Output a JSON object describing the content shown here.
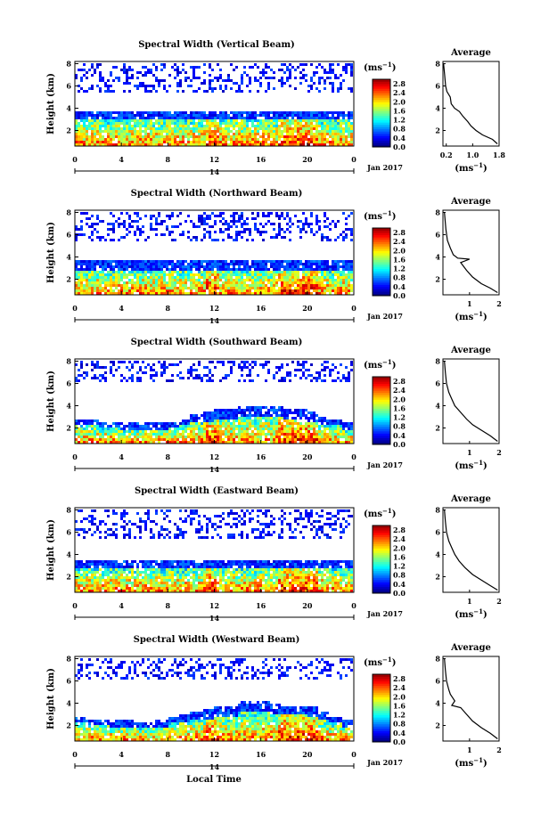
{
  "figure": {
    "xlabel": "Local Time",
    "date_label": "Jan 2017",
    "ylabel": "Height (km)",
    "unit_label": "(ms",
    "unit_exp": "−1",
    "unit_close": ")",
    "avg_title": "Average",
    "avg_xlabel": "(ms",
    "avg_xlabel_exp": "−1",
    "avg_xlabel_close": ")",
    "day_label": "14"
  },
  "chart_data": [
    {
      "type": "heatmap",
      "title": "Spectral Width (Vertical Beam)",
      "x_ticks": [
        "0",
        "4",
        "8",
        "12",
        "16",
        "20",
        "0"
      ],
      "xlim": [
        0,
        24
      ],
      "y_ticks": [
        "2",
        "4",
        "6",
        "8"
      ],
      "ylim": [
        0.6,
        8.2
      ],
      "colorbar": {
        "ticks": [
          "0.0",
          "0.4",
          "0.8",
          "1.2",
          "1.6",
          "2.0",
          "2.4",
          "2.8"
        ],
        "range": [
          0.0,
          3.0
        ]
      },
      "upper_layer_km": [
        5.5,
        8.0
      ],
      "lower_layer_top_km": [
        3.8,
        3.8,
        3.8,
        3.8,
        3.8,
        3.8,
        3.8,
        3.8,
        3.8,
        3.8,
        3.8,
        3.8,
        3.8,
        3.8,
        3.8,
        3.8,
        3.8,
        3.8,
        3.8,
        3.8,
        3.8,
        3.8,
        3.8,
        3.8
      ],
      "average": {
        "xlim": [
          0.1,
          1.8
        ],
        "x_ticks": [
          "0.2",
          "1.0",
          "1.8"
        ],
        "ylim": [
          0.6,
          8.2
        ],
        "y_ticks": [
          "2",
          "4",
          "6",
          "8"
        ],
        "points": [
          [
            1.75,
            0.8
          ],
          [
            1.6,
            1.2
          ],
          [
            1.3,
            1.6
          ],
          [
            1.1,
            2.0
          ],
          [
            0.95,
            2.4
          ],
          [
            0.85,
            2.8
          ],
          [
            0.7,
            3.3
          ],
          [
            0.6,
            3.7
          ],
          [
            0.45,
            4.0
          ],
          [
            0.35,
            4.4
          ],
          [
            0.32,
            5.0
          ],
          [
            0.22,
            5.5
          ],
          [
            0.18,
            6.0
          ],
          [
            0.15,
            7.0
          ],
          [
            0.12,
            8.0
          ]
        ]
      }
    },
    {
      "type": "heatmap",
      "title": "Spectral Width (Northward Beam)",
      "x_ticks": [
        "0",
        "4",
        "8",
        "12",
        "16",
        "20",
        "0"
      ],
      "xlim": [
        0,
        24
      ],
      "y_ticks": [
        "2",
        "4",
        "6",
        "8"
      ],
      "ylim": [
        0.6,
        8.2
      ],
      "colorbar": {
        "ticks": [
          "0.0",
          "0.4",
          "0.8",
          "1.2",
          "1.6",
          "2.0",
          "2.4",
          "2.8"
        ],
        "range": [
          0.0,
          3.0
        ]
      },
      "upper_layer_km": [
        5.5,
        8.0
      ],
      "lower_layer_top_km": [
        3.7,
        3.7,
        3.7,
        3.7,
        3.7,
        3.7,
        3.7,
        3.7,
        3.7,
        3.7,
        3.7,
        3.7,
        3.7,
        3.7,
        3.7,
        3.7,
        3.7,
        3.7,
        3.7,
        3.7,
        3.7,
        3.7,
        3.7,
        3.7
      ],
      "average": {
        "xlim": [
          0.1,
          2.0
        ],
        "x_ticks": [
          "1",
          "2"
        ],
        "ylim": [
          0.6,
          8.2
        ],
        "y_ticks": [
          "2",
          "4",
          "6",
          "8"
        ],
        "points": [
          [
            1.95,
            0.8
          ],
          [
            1.7,
            1.2
          ],
          [
            1.4,
            1.6
          ],
          [
            1.1,
            2.2
          ],
          [
            0.9,
            2.8
          ],
          [
            0.7,
            3.5
          ],
          [
            1.0,
            3.8
          ],
          [
            0.6,
            3.9
          ],
          [
            0.45,
            4.2
          ],
          [
            0.35,
            4.8
          ],
          [
            0.25,
            5.5
          ],
          [
            0.2,
            6.5
          ],
          [
            0.15,
            8.0
          ]
        ]
      }
    },
    {
      "type": "heatmap",
      "title": "Spectral Width (Southward Beam)",
      "x_ticks": [
        "0",
        "4",
        "8",
        "12",
        "16",
        "20",
        "0"
      ],
      "xlim": [
        0,
        24
      ],
      "y_ticks": [
        "2",
        "4",
        "6",
        "8"
      ],
      "ylim": [
        0.6,
        8.2
      ],
      "colorbar": {
        "ticks": [
          "0.0",
          "0.4",
          "0.8",
          "1.2",
          "1.6",
          "2.0",
          "2.4",
          "2.8"
        ],
        "range": [
          0.0,
          3.0
        ]
      },
      "upper_layer_km": [
        6.0,
        8.0
      ],
      "lower_layer_top_km": [
        2.8,
        2.8,
        2.6,
        2.6,
        2.4,
        2.4,
        2.4,
        2.4,
        2.6,
        2.8,
        3.2,
        3.4,
        3.6,
        3.6,
        4.0,
        4.0,
        4.0,
        4.0,
        3.6,
        3.6,
        3.4,
        3.0,
        2.8,
        2.4
      ],
      "average": {
        "xlim": [
          0.1,
          2.0
        ],
        "x_ticks": [
          "1",
          "2"
        ],
        "ylim": [
          0.6,
          8.2
        ],
        "y_ticks": [
          "2",
          "4",
          "6",
          "8"
        ],
        "points": [
          [
            1.95,
            0.8
          ],
          [
            1.7,
            1.3
          ],
          [
            1.4,
            1.8
          ],
          [
            1.1,
            2.3
          ],
          [
            0.9,
            2.8
          ],
          [
            0.7,
            3.4
          ],
          [
            0.5,
            4.0
          ],
          [
            0.4,
            4.6
          ],
          [
            0.3,
            5.2
          ],
          [
            0.22,
            6.0
          ],
          [
            0.18,
            7.0
          ],
          [
            0.15,
            8.0
          ]
        ]
      }
    },
    {
      "type": "heatmap",
      "title": "Spectral Width (Eastward Beam)",
      "x_ticks": [
        "0",
        "4",
        "8",
        "12",
        "16",
        "20",
        "0"
      ],
      "xlim": [
        0,
        24
      ],
      "y_ticks": [
        "2",
        "4",
        "6",
        "8"
      ],
      "ylim": [
        0.6,
        8.2
      ],
      "colorbar": {
        "ticks": [
          "0.0",
          "0.4",
          "0.8",
          "1.2",
          "1.6",
          "2.0",
          "2.4",
          "2.8"
        ],
        "range": [
          0.0,
          3.0
        ]
      },
      "upper_layer_km": [
        5.5,
        8.0
      ],
      "lower_layer_top_km": [
        3.5,
        3.5,
        3.5,
        3.5,
        3.5,
        3.5,
        3.5,
        3.5,
        3.5,
        3.5,
        3.5,
        3.5,
        3.5,
        3.5,
        3.5,
        3.5,
        3.5,
        3.5,
        3.5,
        3.5,
        3.5,
        3.5,
        3.5,
        3.5
      ],
      "average": {
        "xlim": [
          0.1,
          2.0
        ],
        "x_ticks": [
          "1",
          "2"
        ],
        "ylim": [
          0.6,
          8.2
        ],
        "y_ticks": [
          "2",
          "4",
          "6",
          "8"
        ],
        "points": [
          [
            1.95,
            0.8
          ],
          [
            1.7,
            1.2
          ],
          [
            1.4,
            1.7
          ],
          [
            1.1,
            2.2
          ],
          [
            0.85,
            2.8
          ],
          [
            0.65,
            3.4
          ],
          [
            0.5,
            4.0
          ],
          [
            0.4,
            4.6
          ],
          [
            0.3,
            5.2
          ],
          [
            0.22,
            6.0
          ],
          [
            0.18,
            7.0
          ],
          [
            0.15,
            8.0
          ]
        ]
      }
    },
    {
      "type": "heatmap",
      "title": "Spectral Width (Westward Beam)",
      "x_ticks": [
        "0",
        "4",
        "8",
        "12",
        "16",
        "20",
        "0"
      ],
      "xlim": [
        0,
        24
      ],
      "y_ticks": [
        "2",
        "4",
        "6",
        "8"
      ],
      "ylim": [
        0.6,
        8.2
      ],
      "colorbar": {
        "ticks": [
          "0.0",
          "0.4",
          "0.8",
          "1.2",
          "1.6",
          "2.0",
          "2.4",
          "2.8"
        ],
        "range": [
          0.0,
          3.0
        ]
      },
      "upper_layer_km": [
        6.0,
        8.0
      ],
      "lower_layer_top_km": [
        2.8,
        2.6,
        2.6,
        2.4,
        2.4,
        2.2,
        2.2,
        2.4,
        2.8,
        3.0,
        3.2,
        3.4,
        3.6,
        3.6,
        4.2,
        4.2,
        4.2,
        4.0,
        3.8,
        3.8,
        3.6,
        3.2,
        2.8,
        2.4
      ],
      "average": {
        "xlim": [
          0.1,
          2.0
        ],
        "x_ticks": [
          "1",
          "2"
        ],
        "ylim": [
          0.6,
          8.2
        ],
        "y_ticks": [
          "2",
          "4",
          "6",
          "8"
        ],
        "points": [
          [
            1.95,
            0.8
          ],
          [
            1.7,
            1.3
          ],
          [
            1.4,
            1.8
          ],
          [
            1.1,
            2.4
          ],
          [
            0.9,
            3.0
          ],
          [
            0.7,
            3.6
          ],
          [
            0.4,
            3.8
          ],
          [
            0.5,
            4.2
          ],
          [
            0.35,
            4.8
          ],
          [
            0.3,
            5.2
          ],
          [
            0.22,
            6.0
          ],
          [
            0.18,
            7.0
          ],
          [
            0.15,
            8.0
          ]
        ]
      }
    }
  ]
}
